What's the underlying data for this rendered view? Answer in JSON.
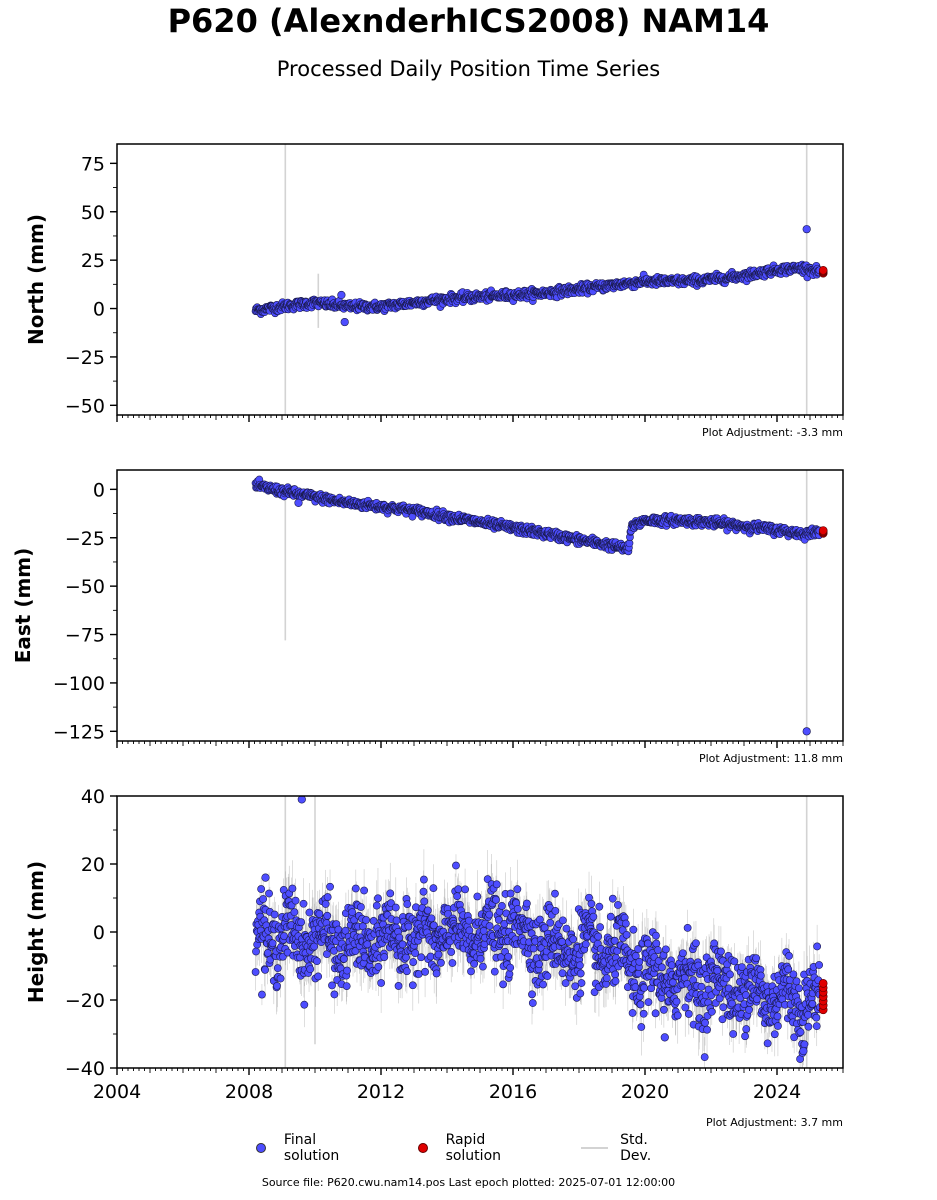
{
  "title": "P620 (AlexnderhICS2008) NAM14",
  "subtitle": "Processed Daily Position Time Series",
  "legend": {
    "final": "Final solution",
    "rapid": "Rapid solution",
    "std": "Std. Dev."
  },
  "source": "Source file: P620.cwu.nam14.pos  Last epoch plotted: 2025-07-01 12:00:00",
  "colors": {
    "final": "#4d4dff",
    "rapid": "#e00000",
    "std": "#d3d3d3",
    "edge": "#1a1a4d"
  },
  "chart_data": [
    {
      "type": "scatter",
      "ylabel": "North (mm)",
      "xlim": [
        2004,
        2026
      ],
      "ylim": [
        -55,
        85
      ],
      "yticks": [
        -50,
        -25,
        0,
        25,
        50,
        75
      ],
      "adjustment": "Plot Adjustment: -3.3 mm",
      "series": [
        {
          "name": "Final solution",
          "x": [
            2008.2,
            2009,
            2010,
            2011,
            2012,
            2013,
            2014,
            2015,
            2016,
            2017,
            2018,
            2019,
            2019.5,
            2020,
            2021,
            2022,
            2023,
            2024,
            2024.8,
            2025.3
          ],
          "y": [
            -1,
            1,
            3,
            1,
            1,
            3,
            5,
            6,
            7,
            8,
            10,
            12,
            13,
            14,
            14,
            15,
            17,
            20,
            21,
            19
          ]
        },
        {
          "name": "Rapid solution",
          "x": [
            2025.4
          ],
          "y": [
            19
          ]
        }
      ],
      "outliers": [
        {
          "x": 2024.9,
          "y": 41
        },
        {
          "x": 2010.9,
          "y": -7
        },
        {
          "x": 2010.8,
          "y": 7
        }
      ],
      "stdev_spikes": [
        {
          "x": 2009.1,
          "lo": -55,
          "hi": 85
        },
        {
          "x": 2024.9,
          "lo": -55,
          "hi": 85
        },
        {
          "x": 2010.1,
          "lo": -10,
          "hi": 18
        }
      ]
    },
    {
      "type": "scatter",
      "ylabel": "East (mm)",
      "xlim": [
        2004,
        2026
      ],
      "ylim": [
        -130,
        10
      ],
      "yticks": [
        -125,
        -100,
        -75,
        -50,
        -25,
        0
      ],
      "adjustment": "Plot Adjustment: 11.8 mm",
      "series": [
        {
          "name": "Final solution",
          "x": [
            2008.2,
            2009,
            2010,
            2011,
            2012,
            2013,
            2014,
            2015,
            2016,
            2017,
            2018,
            2019,
            2019.5,
            2019.6,
            2020,
            2021,
            2022,
            2023,
            2024,
            2024.8,
            2025.3
          ],
          "y": [
            2,
            -1,
            -4,
            -7,
            -9,
            -11,
            -14,
            -17,
            -20,
            -23,
            -26,
            -29,
            -31,
            -19,
            -16,
            -16,
            -17,
            -19,
            -21,
            -23,
            -22
          ]
        },
        {
          "name": "Rapid solution",
          "x": [
            2025.4
          ],
          "y": [
            -22
          ]
        }
      ],
      "outliers": [
        {
          "x": 2024.9,
          "y": -125
        },
        {
          "x": 2009.5,
          "y": -7
        }
      ],
      "stdev_spikes": [
        {
          "x": 2009.1,
          "lo": -78,
          "hi": 2
        },
        {
          "x": 2024.9,
          "lo": -130,
          "hi": 10
        }
      ]
    },
    {
      "type": "scatter",
      "ylabel": "Height (mm)",
      "xlim": [
        2004,
        2026
      ],
      "ylim": [
        -40,
        40
      ],
      "yticks": [
        -40,
        -20,
        0,
        20,
        40
      ],
      "xticks": [
        2004,
        2008,
        2012,
        2016,
        2020,
        2024
      ],
      "adjustment": "Plot Adjustment: 3.7 mm",
      "series": [
        {
          "name": "Final solution",
          "x": [
            2008.2,
            2009,
            2010,
            2011,
            2012,
            2013,
            2014,
            2015,
            2016,
            2017,
            2018,
            2019,
            2020,
            2021,
            2022,
            2023,
            2024,
            2025.3
          ],
          "y": [
            0,
            -1,
            -2,
            -4,
            -2,
            -1,
            -1,
            0,
            1,
            -4,
            -5,
            -6,
            -13,
            -14,
            -15,
            -17,
            -19,
            -20
          ]
        },
        {
          "name": "Rapid solution",
          "x": [
            2025.4
          ],
          "y": [
            -19
          ]
        }
      ],
      "outliers": [
        {
          "x": 2009.6,
          "y": 39
        },
        {
          "x": 2020.6,
          "y": -31
        },
        {
          "x": 2024.8,
          "y": -35
        },
        {
          "x": 2008.5,
          "y": 16
        }
      ],
      "stdev_spikes": [
        {
          "x": 2009.1,
          "lo": -40,
          "hi": 40
        },
        {
          "x": 2024.9,
          "lo": -40,
          "hi": 40
        },
        {
          "x": 2010.0,
          "lo": -33,
          "hi": 40
        }
      ]
    }
  ]
}
